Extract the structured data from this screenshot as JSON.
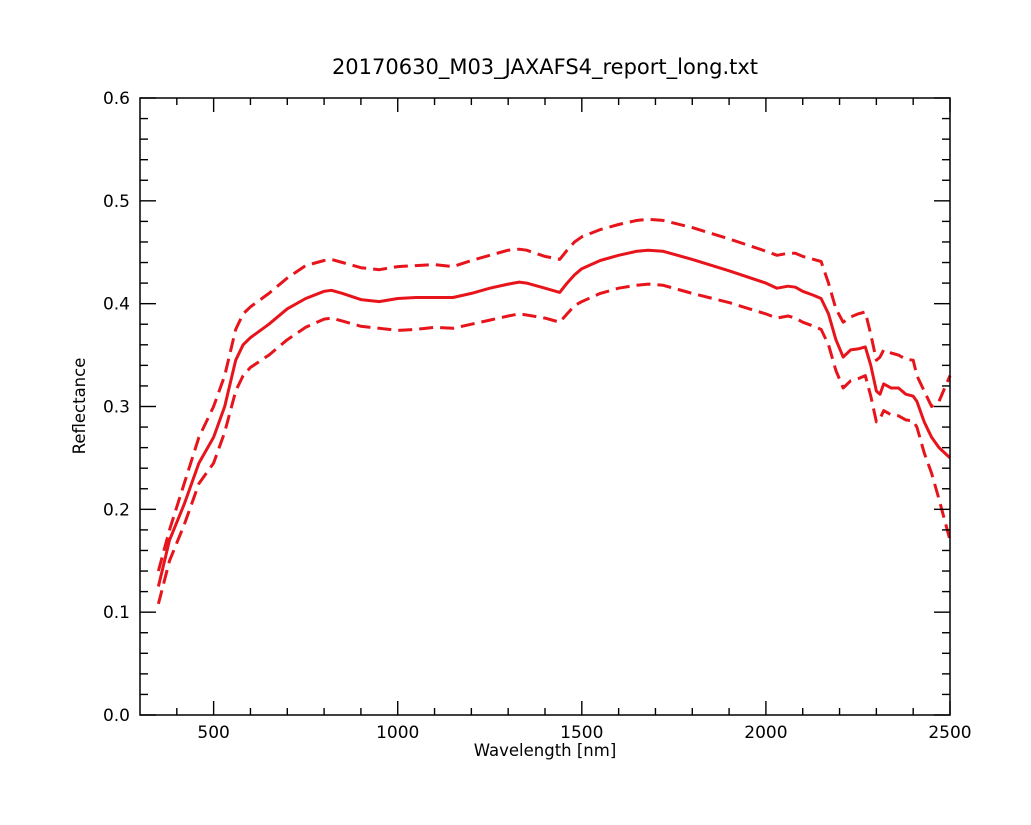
{
  "chart_data": {
    "type": "line",
    "title": "20170630_M03_JAXAFS4_report_long.txt",
    "xlabel": "Wavelength [nm]",
    "ylabel": "Reflectance",
    "xlim": [
      300,
      2500
    ],
    "ylim": [
      0.0,
      0.6
    ],
    "xticks": [
      500,
      1000,
      1500,
      2000,
      2500
    ],
    "xtick_labels": [
      "500",
      "1000",
      "1500",
      "2000",
      "2500"
    ],
    "yticks": [
      0.0,
      0.1,
      0.2,
      0.3,
      0.4,
      0.5,
      0.6
    ],
    "ytick_labels": [
      "0.0",
      "0.1",
      "0.2",
      "0.3",
      "0.4",
      "0.5",
      "0.6"
    ],
    "grid": false,
    "color": "#e8141b",
    "series": [
      {
        "style": "solid",
        "points": [
          [
            350,
            0.125
          ],
          [
            380,
            0.17
          ],
          [
            420,
            0.205
          ],
          [
            460,
            0.245
          ],
          [
            500,
            0.27
          ],
          [
            530,
            0.3
          ],
          [
            560,
            0.345
          ],
          [
            580,
            0.36
          ],
          [
            600,
            0.367
          ],
          [
            650,
            0.38
          ],
          [
            700,
            0.395
          ],
          [
            750,
            0.405
          ],
          [
            800,
            0.412
          ],
          [
            820,
            0.413
          ],
          [
            850,
            0.41
          ],
          [
            900,
            0.404
          ],
          [
            950,
            0.402
          ],
          [
            1000,
            0.405
          ],
          [
            1050,
            0.406
          ],
          [
            1100,
            0.406
          ],
          [
            1150,
            0.406
          ],
          [
            1200,
            0.41
          ],
          [
            1250,
            0.415
          ],
          [
            1300,
            0.419
          ],
          [
            1330,
            0.421
          ],
          [
            1350,
            0.42
          ],
          [
            1400,
            0.415
          ],
          [
            1440,
            0.411
          ],
          [
            1460,
            0.42
          ],
          [
            1480,
            0.428
          ],
          [
            1500,
            0.434
          ],
          [
            1550,
            0.442
          ],
          [
            1600,
            0.447
          ],
          [
            1650,
            0.451
          ],
          [
            1680,
            0.452
          ],
          [
            1720,
            0.451
          ],
          [
            1800,
            0.443
          ],
          [
            1900,
            0.432
          ],
          [
            2000,
            0.42
          ],
          [
            2030,
            0.415
          ],
          [
            2060,
            0.417
          ],
          [
            2080,
            0.416
          ],
          [
            2100,
            0.412
          ],
          [
            2130,
            0.408
          ],
          [
            2150,
            0.405
          ],
          [
            2170,
            0.39
          ],
          [
            2190,
            0.365
          ],
          [
            2210,
            0.348
          ],
          [
            2230,
            0.355
          ],
          [
            2250,
            0.356
          ],
          [
            2270,
            0.358
          ],
          [
            2285,
            0.34
          ],
          [
            2300,
            0.315
          ],
          [
            2310,
            0.312
          ],
          [
            2320,
            0.322
          ],
          [
            2340,
            0.318
          ],
          [
            2360,
            0.318
          ],
          [
            2380,
            0.312
          ],
          [
            2400,
            0.31
          ],
          [
            2410,
            0.305
          ],
          [
            2430,
            0.285
          ],
          [
            2450,
            0.27
          ],
          [
            2470,
            0.26
          ],
          [
            2500,
            0.25
          ]
        ]
      },
      {
        "style": "dashed",
        "points": [
          [
            350,
            0.14
          ],
          [
            380,
            0.18
          ],
          [
            420,
            0.225
          ],
          [
            460,
            0.27
          ],
          [
            500,
            0.3
          ],
          [
            530,
            0.33
          ],
          [
            560,
            0.375
          ],
          [
            580,
            0.39
          ],
          [
            600,
            0.397
          ],
          [
            650,
            0.41
          ],
          [
            700,
            0.425
          ],
          [
            750,
            0.437
          ],
          [
            800,
            0.442
          ],
          [
            820,
            0.443
          ],
          [
            850,
            0.44
          ],
          [
            900,
            0.435
          ],
          [
            950,
            0.433
          ],
          [
            1000,
            0.436
          ],
          [
            1050,
            0.437
          ],
          [
            1100,
            0.438
          ],
          [
            1150,
            0.436
          ],
          [
            1200,
            0.442
          ],
          [
            1250,
            0.447
          ],
          [
            1300,
            0.452
          ],
          [
            1330,
            0.453
          ],
          [
            1350,
            0.452
          ],
          [
            1400,
            0.446
          ],
          [
            1440,
            0.443
          ],
          [
            1460,
            0.452
          ],
          [
            1480,
            0.46
          ],
          [
            1500,
            0.465
          ],
          [
            1550,
            0.472
          ],
          [
            1600,
            0.477
          ],
          [
            1650,
            0.481
          ],
          [
            1680,
            0.482
          ],
          [
            1720,
            0.481
          ],
          [
            1800,
            0.474
          ],
          [
            1900,
            0.463
          ],
          [
            2000,
            0.451
          ],
          [
            2030,
            0.447
          ],
          [
            2060,
            0.449
          ],
          [
            2080,
            0.449
          ],
          [
            2100,
            0.446
          ],
          [
            2130,
            0.443
          ],
          [
            2150,
            0.441
          ],
          [
            2170,
            0.42
          ],
          [
            2190,
            0.395
          ],
          [
            2210,
            0.382
          ],
          [
            2230,
            0.387
          ],
          [
            2250,
            0.39
          ],
          [
            2270,
            0.392
          ],
          [
            2285,
            0.37
          ],
          [
            2300,
            0.345
          ],
          [
            2310,
            0.348
          ],
          [
            2320,
            0.355
          ],
          [
            2340,
            0.352
          ],
          [
            2360,
            0.35
          ],
          [
            2380,
            0.346
          ],
          [
            2400,
            0.345
          ],
          [
            2410,
            0.33
          ],
          [
            2430,
            0.315
          ],
          [
            2450,
            0.3
          ],
          [
            2470,
            0.305
          ],
          [
            2500,
            0.33
          ]
        ]
      },
      {
        "style": "dashed",
        "points": [
          [
            350,
            0.108
          ],
          [
            380,
            0.15
          ],
          [
            420,
            0.185
          ],
          [
            460,
            0.225
          ],
          [
            500,
            0.245
          ],
          [
            530,
            0.275
          ],
          [
            560,
            0.315
          ],
          [
            580,
            0.33
          ],
          [
            600,
            0.338
          ],
          [
            650,
            0.35
          ],
          [
            700,
            0.365
          ],
          [
            750,
            0.377
          ],
          [
            800,
            0.385
          ],
          [
            820,
            0.386
          ],
          [
            850,
            0.383
          ],
          [
            900,
            0.378
          ],
          [
            950,
            0.376
          ],
          [
            1000,
            0.374
          ],
          [
            1050,
            0.375
          ],
          [
            1100,
            0.377
          ],
          [
            1150,
            0.376
          ],
          [
            1200,
            0.38
          ],
          [
            1250,
            0.384
          ],
          [
            1300,
            0.388
          ],
          [
            1330,
            0.39
          ],
          [
            1350,
            0.389
          ],
          [
            1400,
            0.386
          ],
          [
            1440,
            0.382
          ],
          [
            1460,
            0.39
          ],
          [
            1480,
            0.398
          ],
          [
            1500,
            0.402
          ],
          [
            1550,
            0.41
          ],
          [
            1600,
            0.415
          ],
          [
            1650,
            0.418
          ],
          [
            1680,
            0.419
          ],
          [
            1720,
            0.418
          ],
          [
            1800,
            0.41
          ],
          [
            1900,
            0.401
          ],
          [
            2000,
            0.39
          ],
          [
            2030,
            0.386
          ],
          [
            2060,
            0.388
          ],
          [
            2080,
            0.386
          ],
          [
            2100,
            0.382
          ],
          [
            2130,
            0.378
          ],
          [
            2150,
            0.375
          ],
          [
            2170,
            0.36
          ],
          [
            2190,
            0.335
          ],
          [
            2210,
            0.318
          ],
          [
            2230,
            0.325
          ],
          [
            2250,
            0.327
          ],
          [
            2270,
            0.33
          ],
          [
            2285,
            0.31
          ],
          [
            2300,
            0.285
          ],
          [
            2310,
            0.288
          ],
          [
            2320,
            0.296
          ],
          [
            2340,
            0.292
          ],
          [
            2360,
            0.291
          ],
          [
            2380,
            0.287
          ],
          [
            2400,
            0.286
          ],
          [
            2410,
            0.28
          ],
          [
            2430,
            0.255
          ],
          [
            2450,
            0.235
          ],
          [
            2470,
            0.21
          ],
          [
            2500,
            0.17
          ]
        ]
      }
    ]
  }
}
